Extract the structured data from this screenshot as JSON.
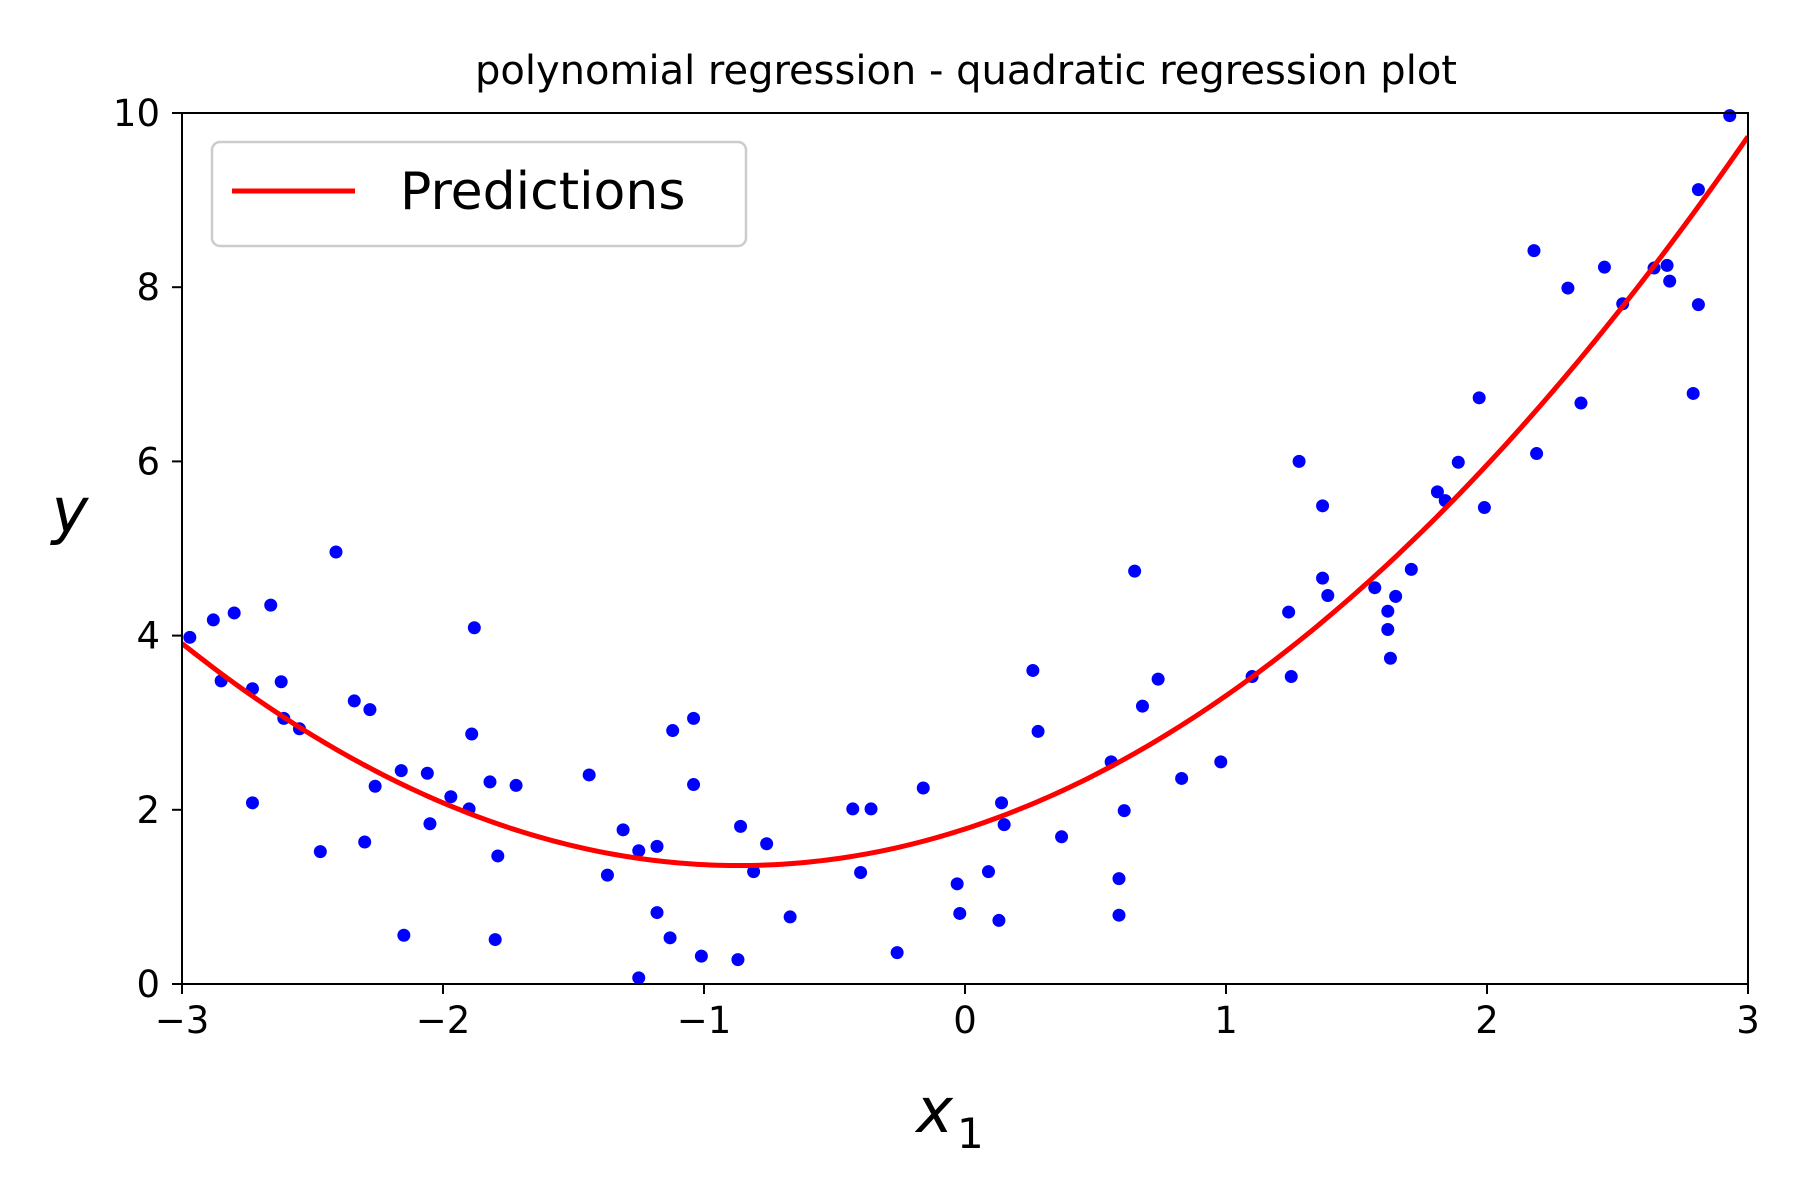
{
  "chart_data": {
    "type": "scatter",
    "title": "polynomial regression - quadratic regression plot",
    "xlabel": "x",
    "xlabel_subscript": "1",
    "ylabel": "y",
    "xlim": [
      -3,
      3
    ],
    "ylim": [
      0,
      10
    ],
    "xticks": [
      -3,
      -2,
      -1,
      0,
      1,
      2,
      3
    ],
    "xtick_labels": [
      "−3",
      "−2",
      "−1",
      "0",
      "1",
      "2",
      "3"
    ],
    "yticks": [
      0,
      2,
      4,
      6,
      8,
      10
    ],
    "ytick_labels": [
      "0",
      "2",
      "4",
      "6",
      "8",
      "10"
    ],
    "grid": false,
    "legend_position": "top-left",
    "series": [
      {
        "kind": "points",
        "color": "#0000ff",
        "points": [
          [
            -2.97,
            3.98
          ],
          [
            -2.88,
            4.18
          ],
          [
            -2.85,
            3.48
          ],
          [
            -2.8,
            4.26
          ],
          [
            -2.73,
            3.39
          ],
          [
            -2.73,
            2.08
          ],
          [
            -2.66,
            4.35
          ],
          [
            -2.62,
            3.47
          ],
          [
            -2.61,
            3.05
          ],
          [
            -2.55,
            2.93
          ],
          [
            -2.47,
            1.52
          ],
          [
            -2.41,
            4.96
          ],
          [
            -2.34,
            3.25
          ],
          [
            -2.3,
            1.63
          ],
          [
            -2.28,
            3.15
          ],
          [
            -2.26,
            2.27
          ],
          [
            -2.16,
            2.45
          ],
          [
            -2.15,
            0.56
          ],
          [
            -2.06,
            2.42
          ],
          [
            -2.05,
            1.84
          ],
          [
            -1.97,
            2.15
          ],
          [
            -1.9,
            2.01
          ],
          [
            -1.89,
            2.87
          ],
          [
            -1.88,
            4.09
          ],
          [
            -1.82,
            2.32
          ],
          [
            -1.8,
            0.51
          ],
          [
            -1.79,
            1.47
          ],
          [
            -1.72,
            2.28
          ],
          [
            -1.44,
            2.4
          ],
          [
            -1.37,
            1.25
          ],
          [
            -1.31,
            1.77
          ],
          [
            -1.25,
            1.53
          ],
          [
            -1.25,
            0.07
          ],
          [
            -1.18,
            1.58
          ],
          [
            -1.18,
            0.82
          ],
          [
            -1.13,
            0.53
          ],
          [
            -1.12,
            2.91
          ],
          [
            -1.04,
            3.05
          ],
          [
            -1.04,
            2.29
          ],
          [
            -1.01,
            0.32
          ],
          [
            -0.86,
            1.81
          ],
          [
            -0.87,
            0.28
          ],
          [
            -0.81,
            1.29
          ],
          [
            -0.76,
            1.61
          ],
          [
            -0.67,
            0.77
          ],
          [
            -0.43,
            2.01
          ],
          [
            -0.4,
            1.28
          ],
          [
            -0.36,
            2.01
          ],
          [
            -0.26,
            0.36
          ],
          [
            -0.16,
            2.25
          ],
          [
            -0.03,
            1.15
          ],
          [
            -0.02,
            0.81
          ],
          [
            0.09,
            1.29
          ],
          [
            0.13,
            0.73
          ],
          [
            0.14,
            2.08
          ],
          [
            0.15,
            1.83
          ],
          [
            0.26,
            3.6
          ],
          [
            0.28,
            2.9
          ],
          [
            0.37,
            1.69
          ],
          [
            0.56,
            2.55
          ],
          [
            0.59,
            1.21
          ],
          [
            0.59,
            0.79
          ],
          [
            0.61,
            1.99
          ],
          [
            0.65,
            4.74
          ],
          [
            0.68,
            3.19
          ],
          [
            0.74,
            3.5
          ],
          [
            0.83,
            2.36
          ],
          [
            0.98,
            2.55
          ],
          [
            1.1,
            3.53
          ],
          [
            1.24,
            4.27
          ],
          [
            1.25,
            3.53
          ],
          [
            1.28,
            6.0
          ],
          [
            1.37,
            5.49
          ],
          [
            1.37,
            4.66
          ],
          [
            1.39,
            4.46
          ],
          [
            1.57,
            4.55
          ],
          [
            1.62,
            4.28
          ],
          [
            1.62,
            4.07
          ],
          [
            1.63,
            3.74
          ],
          [
            1.65,
            4.45
          ],
          [
            1.71,
            4.76
          ],
          [
            1.81,
            5.65
          ],
          [
            1.84,
            5.55
          ],
          [
            1.89,
            5.99
          ],
          [
            1.97,
            6.73
          ],
          [
            1.99,
            5.47
          ],
          [
            2.18,
            8.42
          ],
          [
            2.19,
            6.09
          ],
          [
            2.31,
            7.99
          ],
          [
            2.36,
            6.67
          ],
          [
            2.45,
            8.23
          ],
          [
            2.52,
            7.81
          ],
          [
            2.64,
            8.22
          ],
          [
            2.69,
            8.25
          ],
          [
            2.7,
            8.07
          ],
          [
            2.79,
            6.78
          ],
          [
            2.81,
            9.12
          ],
          [
            2.81,
            7.8
          ],
          [
            2.93,
            9.97
          ]
        ]
      },
      {
        "kind": "curve",
        "name": "Predictions",
        "color": "#ff0000",
        "equation": "y = 0.56*x^2 + 0.97*x + 1.78",
        "coefficients": {
          "a": 0.56,
          "b": 0.97,
          "c": 1.78
        }
      }
    ]
  }
}
